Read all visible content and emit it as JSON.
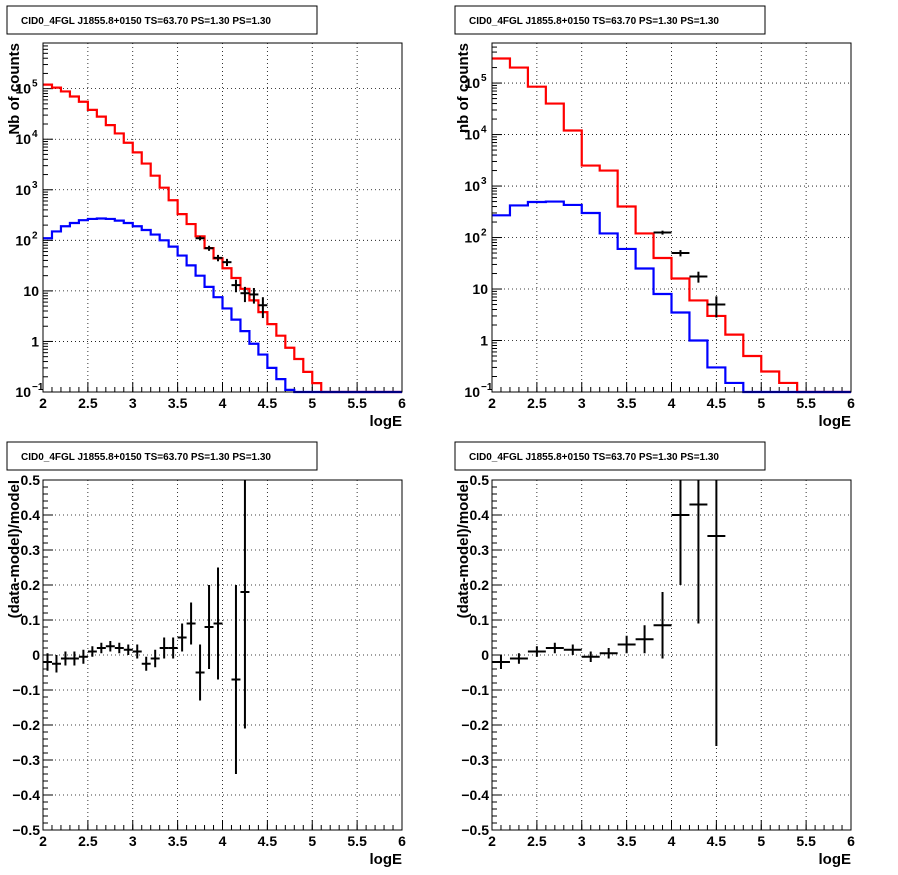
{
  "chart_data": [
    {
      "type": "line",
      "title": "CID0_4FGL J1855.8+0150 TS=63.70 PS=1.30 PS=1.30",
      "xlabel": "logE",
      "ylabel": "Nb of counts",
      "xlim": [
        2,
        6
      ],
      "ylim": [
        0.1,
        800000
      ],
      "yscale": "log",
      "grid": true,
      "x_ticks": [
        "2",
        "2.5",
        "3",
        "3.5",
        "4",
        "4.5",
        "5",
        "5.5",
        "6"
      ],
      "y_ticks": [
        {
          "value": 0.1,
          "label": "10",
          "sup": "−1"
        },
        {
          "value": 1,
          "label": "1",
          "sup": ""
        },
        {
          "value": 10,
          "label": "10",
          "sup": ""
        },
        {
          "value": 100,
          "label": "10",
          "sup": "2"
        },
        {
          "value": 1000,
          "label": "10",
          "sup": "3"
        },
        {
          "value": 10000,
          "label": "10",
          "sup": "4"
        },
        {
          "value": 100000,
          "label": "10",
          "sup": "5"
        }
      ],
      "bin_edges": [
        2,
        2.1,
        2.2,
        2.3,
        2.4,
        2.5,
        2.6,
        2.7,
        2.8,
        2.9,
        3,
        3.1,
        3.2,
        3.3,
        3.4,
        3.5,
        3.6,
        3.7,
        3.8,
        3.9,
        4,
        4.1,
        4.2,
        4.3,
        4.4,
        4.5,
        4.6,
        4.7,
        4.8,
        4.9,
        5,
        5.1,
        5.2,
        5.3,
        5.4,
        5.5,
        5.6,
        5.7,
        5.8,
        5.9,
        6
      ],
      "series": [
        {
          "color": "#ff0000",
          "style": "step",
          "values": [
            120000,
            105000,
            88000,
            70000,
            55000,
            38000,
            28000,
            19000,
            13000,
            8500,
            5500,
            3300,
            1900,
            1100,
            620,
            330,
            210,
            120,
            70,
            44,
            28,
            18,
            11,
            6.5,
            3.8,
            2.2,
            1.3,
            0.75,
            0.45,
            0.25,
            0.15,
            0.1,
            0.1,
            0.1,
            0.1,
            0.1,
            0.1,
            0.1,
            0.1,
            0.1
          ]
        },
        {
          "color": "#0000ff",
          "style": "step",
          "values": [
            110,
            150,
            190,
            220,
            250,
            265,
            270,
            265,
            245,
            220,
            190,
            160,
            130,
            100,
            75,
            50,
            32,
            20,
            12,
            7.5,
            4.5,
            2.7,
            1.6,
            0.9,
            0.55,
            0.3,
            0.18,
            0.11,
            0.1,
            0.1,
            0.1,
            0.1,
            0.1,
            0.1,
            0.1,
            0.1,
            0.1,
            0.1,
            0.1,
            0.1
          ]
        },
        {
          "color": "#000000",
          "style": "errorbar",
          "x": [
            3.75,
            3.85,
            3.95,
            4.05,
            4.15,
            4.25,
            4.35,
            4.45
          ],
          "y": [
            110,
            70,
            45,
            37,
            13,
            9,
            8.5,
            5.2
          ],
          "yerr": [
            10,
            8,
            6.5,
            6,
            3.6,
            3,
            2.9,
            2.3
          ],
          "xerr": [
            0.05,
            0.05,
            0.05,
            0.05,
            0.05,
            0.05,
            0.05,
            0.05
          ]
        }
      ]
    },
    {
      "type": "line",
      "title": "CID0_4FGL J1855.8+0150 TS=63.70 PS=1.30 PS=1.30",
      "xlabel": "logE",
      "ylabel": "nb of counts",
      "xlim": [
        2,
        6
      ],
      "ylim": [
        0.1,
        600000
      ],
      "yscale": "log",
      "grid": true,
      "x_ticks": [
        "2",
        "2.5",
        "3",
        "3.5",
        "4",
        "4.5",
        "5",
        "5.5",
        "6"
      ],
      "y_ticks": [
        {
          "value": 0.1,
          "label": "10",
          "sup": "−1"
        },
        {
          "value": 1,
          "label": "1",
          "sup": ""
        },
        {
          "value": 10,
          "label": "10",
          "sup": ""
        },
        {
          "value": 100,
          "label": "10",
          "sup": "2"
        },
        {
          "value": 1000,
          "label": "10",
          "sup": "3"
        },
        {
          "value": 10000,
          "label": "10",
          "sup": "4"
        },
        {
          "value": 100000,
          "label": "10",
          "sup": "5"
        }
      ],
      "bin_edges": [
        2,
        2.2,
        2.4,
        2.6,
        2.8,
        3,
        3.2,
        3.4,
        3.6,
        3.8,
        4,
        4.2,
        4.4,
        4.6,
        4.8,
        5,
        5.2,
        5.4,
        5.6,
        5.8,
        6
      ],
      "series": [
        {
          "color": "#ff0000",
          "style": "step",
          "values": [
            300000,
            200000,
            85000,
            40000,
            12000,
            2500,
            2000,
            400,
            120,
            40,
            16,
            6,
            3,
            1.3,
            0.5,
            0.25,
            0.15,
            0.1,
            0.1,
            0.1
          ]
        },
        {
          "color": "#0000ff",
          "style": "step",
          "values": [
            270,
            420,
            490,
            500,
            430,
            300,
            120,
            60,
            25,
            8,
            3.5,
            1,
            0.3,
            0.15,
            0.1,
            0.1,
            0.1,
            0.1,
            0.1,
            0.1
          ]
        },
        {
          "color": "#000000",
          "style": "errorbar",
          "x": [
            3.9,
            4.1,
            4.3,
            4.5
          ],
          "y": [
            125,
            50,
            17.5,
            5
          ],
          "yerr": [
            11,
            7,
            4.2,
            2.2
          ],
          "xerr": [
            0.1,
            0.1,
            0.1,
            0.1
          ]
        }
      ]
    },
    {
      "type": "scatter",
      "title": "CID0_4FGL J1855.8+0150 TS=63.70 PS=1.30 PS=1.30",
      "xlabel": "logE",
      "ylabel": "(data-model)/model",
      "xlim": [
        2,
        6
      ],
      "ylim": [
        -0.5,
        0.5
      ],
      "grid": true,
      "x_ticks": [
        "2",
        "2.5",
        "3",
        "3.5",
        "4",
        "4.5",
        "5",
        "5.5",
        "6"
      ],
      "y_ticks": [
        "−0.5",
        "−0.4",
        "−0.3",
        "−0.2",
        "−0.1",
        "0",
        "0.1",
        "0.2",
        "0.3",
        "0.4",
        "0.5"
      ],
      "series": [
        {
          "color": "#000000",
          "style": "errorbar",
          "x": [
            2.05,
            2.15,
            2.25,
            2.35,
            2.45,
            2.55,
            2.65,
            2.75,
            2.85,
            2.95,
            3.05,
            3.15,
            3.25,
            3.35,
            3.45,
            3.55,
            3.65,
            3.75,
            3.85,
            3.95,
            4.15,
            4.25
          ],
          "y": [
            -0.02,
            -0.025,
            -0.01,
            -0.01,
            -0.005,
            0.01,
            0.02,
            0.025,
            0.02,
            0.015,
            0.01,
            -0.025,
            -0.01,
            0.02,
            0.02,
            0.05,
            0.09,
            -0.05,
            0.08,
            0.09,
            -0.07,
            0.18
          ],
          "yerr": [
            0.025,
            0.025,
            0.02,
            0.02,
            0.02,
            0.015,
            0.015,
            0.015,
            0.015,
            0.015,
            0.02,
            0.02,
            0.025,
            0.03,
            0.03,
            0.04,
            0.06,
            0.08,
            0.12,
            0.16,
            0.27,
            0.39
          ],
          "xerr": [
            0.05,
            0.05,
            0.05,
            0.05,
            0.05,
            0.05,
            0.05,
            0.05,
            0.05,
            0.05,
            0.05,
            0.05,
            0.05,
            0.05,
            0.05,
            0.05,
            0.05,
            0.05,
            0.05,
            0.05,
            0.05,
            0.05
          ]
        }
      ]
    },
    {
      "type": "scatter",
      "title": "CID0_4FGL J1855.8+0150 TS=63.70 PS=1.30 PS=1.30",
      "xlabel": "logE",
      "ylabel": "(data-model)/model",
      "xlim": [
        2,
        6
      ],
      "ylim": [
        -0.5,
        0.5
      ],
      "grid": true,
      "x_ticks": [
        "2",
        "2.5",
        "3",
        "3.5",
        "4",
        "4.5",
        "5",
        "5.5",
        "6"
      ],
      "y_ticks": [
        "−0.5",
        "−0.4",
        "−0.3",
        "−0.2",
        "−0.1",
        "0",
        "0.1",
        "0.2",
        "0.3",
        "0.4",
        "0.5"
      ],
      "series": [
        {
          "color": "#000000",
          "style": "errorbar",
          "x": [
            2.1,
            2.3,
            2.5,
            2.7,
            2.9,
            3.1,
            3.3,
            3.5,
            3.7,
            3.9,
            4.1,
            4.3,
            4.5
          ],
          "y": [
            -0.02,
            -0.01,
            0.01,
            0.02,
            0.015,
            -0.005,
            0.005,
            0.03,
            0.045,
            0.085,
            0.4,
            0.43,
            0.34
          ],
          "yerr": [
            0.02,
            0.015,
            0.015,
            0.015,
            0.015,
            0.015,
            0.015,
            0.025,
            0.04,
            0.095,
            0.2,
            0.34,
            0.6
          ],
          "xerr": [
            0.1,
            0.1,
            0.1,
            0.1,
            0.1,
            0.1,
            0.1,
            0.1,
            0.1,
            0.1,
            0.1,
            0.1,
            0.1
          ]
        }
      ]
    }
  ]
}
